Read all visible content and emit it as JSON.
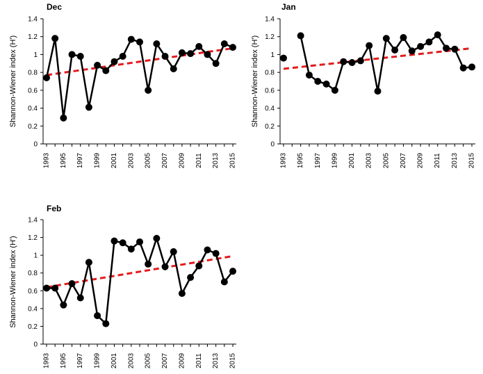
{
  "chart_data": [
    {
      "type": "line",
      "title": "Dec",
      "ylabel": "Shannon-Wiener index (H')",
      "xlabel": "",
      "x": [
        1993,
        1994,
        1995,
        1996,
        1997,
        1998,
        1999,
        2000,
        2001,
        2002,
        2003,
        2004,
        2005,
        2006,
        2007,
        2008,
        2009,
        2010,
        2011,
        2012,
        2013,
        2014,
        2015
      ],
      "x_tick_labels": [
        "1993",
        "1995",
        "1997",
        "1999",
        "2001",
        "2003",
        "2005",
        "2007",
        "2009",
        "2011",
        "2013",
        "2015"
      ],
      "y_tick_labels": [
        "0",
        "0.2",
        "0.4",
        "0.6",
        "0.8",
        "1",
        "1.2",
        "1.4"
      ],
      "ylim": [
        0,
        1.4
      ],
      "grid": false,
      "series": [
        {
          "values": [
            0.74,
            1.18,
            0.29,
            1.0,
            0.98,
            0.41,
            0.88,
            0.82,
            0.92,
            0.98,
            1.17,
            1.14,
            0.6,
            1.12,
            0.98,
            0.84,
            1.02,
            1.01,
            1.09,
            1.0,
            0.9,
            1.12,
            1.08
          ],
          "color": "#000000",
          "style": "solid-markers"
        }
      ],
      "trendline": {
        "start": 0.77,
        "end": 1.07,
        "color": "#e31a1c",
        "style": "dashed"
      }
    },
    {
      "type": "line",
      "title": "Jan",
      "ylabel": "Shannon-Wiener index (H')",
      "xlabel": "",
      "x": [
        1993,
        1994,
        1995,
        1996,
        1997,
        1998,
        1999,
        2000,
        2001,
        2002,
        2003,
        2004,
        2005,
        2006,
        2007,
        2008,
        2009,
        2010,
        2011,
        2012,
        2013,
        2014,
        2015
      ],
      "x_tick_labels": [
        "1993",
        "1995",
        "1997",
        "1999",
        "2001",
        "2003",
        "2005",
        "2007",
        "2009",
        "2011",
        "2013",
        "2015"
      ],
      "y_tick_labels": [
        "0",
        "0.2",
        "0.4",
        "0.6",
        "0.8",
        "1",
        "1.2",
        "1.4"
      ],
      "ylim": [
        0,
        1.4
      ],
      "grid": false,
      "series": [
        {
          "values": [
            0.96,
            null,
            1.21,
            0.77,
            0.7,
            0.67,
            0.6,
            0.92,
            0.91,
            0.93,
            1.1,
            0.59,
            1.18,
            1.05,
            1.19,
            1.04,
            1.09,
            1.14,
            1.22,
            1.07,
            1.06,
            0.85,
            0.86
          ],
          "color": "#000000",
          "style": "solid-markers"
        }
      ],
      "trendline": {
        "start": 0.84,
        "end": 1.07,
        "color": "#e31a1c",
        "style": "dashed"
      }
    },
    {
      "type": "line",
      "title": "Feb",
      "ylabel": "Shannon-Wiener index (H')",
      "xlabel": "",
      "x": [
        1993,
        1994,
        1995,
        1996,
        1997,
        1998,
        1999,
        2000,
        2001,
        2002,
        2003,
        2004,
        2005,
        2006,
        2007,
        2008,
        2009,
        2010,
        2011,
        2012,
        2013,
        2014,
        2015
      ],
      "x_tick_labels": [
        "1993",
        "1995",
        "1997",
        "1999",
        "2001",
        "2003",
        "2005",
        "2007",
        "2009",
        "2011",
        "2013",
        "2015"
      ],
      "y_tick_labels": [
        "0",
        "0.2",
        "0.4",
        "0.6",
        "0.8",
        "1",
        "1.2",
        "1.4"
      ],
      "ylim": [
        0,
        1.4
      ],
      "grid": false,
      "series": [
        {
          "values": [
            0.63,
            0.63,
            0.44,
            0.68,
            0.52,
            0.92,
            0.32,
            0.23,
            1.16,
            1.14,
            1.07,
            1.15,
            0.9,
            1.19,
            0.87,
            1.04,
            0.57,
            0.75,
            0.88,
            1.06,
            1.02,
            0.7,
            0.82
          ],
          "color": "#000000",
          "style": "solid-markers"
        }
      ],
      "trendline": {
        "start": 0.64,
        "end": 0.99,
        "color": "#e31a1c",
        "style": "dashed"
      }
    }
  ]
}
